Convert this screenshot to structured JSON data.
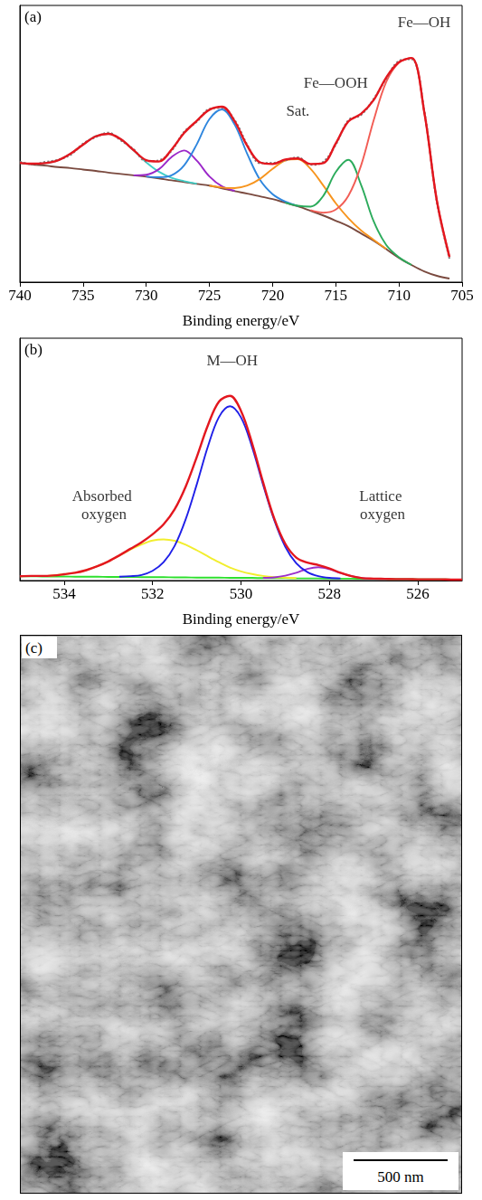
{
  "chart_data": [
    {
      "type": "line",
      "title": "(a)",
      "xlabel": "Binding energy/eV",
      "xlim": [
        740,
        705
      ],
      "xticks": [
        740,
        735,
        730,
        725,
        720,
        715,
        710,
        705
      ],
      "ylim": [
        0,
        100
      ],
      "grid": false,
      "tick_labels": "x",
      "x": [
        740,
        739,
        738,
        737,
        736,
        735,
        734,
        733,
        732,
        731,
        730,
        729,
        728,
        727,
        726,
        725,
        724,
        723,
        722,
        721,
        720,
        719,
        718,
        717,
        716,
        715,
        714,
        713,
        712,
        711,
        710,
        709,
        708,
        707,
        706
      ],
      "series": [
        {
          "color": "#7a4a3f",
          "line_style": "solid",
          "values": [
            43.0,
            42.5,
            42.1,
            41.6,
            41.2,
            40.7,
            40.2,
            39.6,
            39.1,
            38.6,
            38.1,
            37.5,
            36.8,
            36.2,
            35.5,
            34.9,
            33.9,
            32.9,
            32.0,
            31.0,
            30.0,
            28.7,
            27.4,
            25.8,
            24.1,
            22.2,
            20.2,
            17.6,
            15.0,
            11.9,
            8.8,
            6.2,
            3.9,
            2.3,
            1.3
          ]
        },
        {
          "color": "#41cfc8",
          "line_style": "solid",
          "values": [
            43.1,
            42.8,
            43.0,
            44.0,
            46.4,
            49.7,
            52.7,
            53.6,
            51.6,
            47.6,
            43.3,
            39.9,
            37.7,
            36.5,
            35.6,
            null,
            null,
            null,
            null,
            null,
            null,
            null,
            null,
            null,
            null,
            null,
            null,
            null,
            null,
            null,
            null,
            null,
            null,
            null,
            null
          ]
        },
        {
          "color": "#9b27c9",
          "line_style": "solid",
          "values": [
            null,
            null,
            null,
            null,
            null,
            null,
            null,
            null,
            null,
            38.6,
            38.8,
            40.8,
            45.2,
            47.6,
            43.9,
            38.2,
            34.6,
            33.0,
            null,
            null,
            null,
            null,
            null,
            null,
            null,
            null,
            null,
            null,
            null,
            null,
            null,
            null,
            null,
            null,
            null
          ]
        },
        {
          "color": "#2e86de",
          "line_style": "solid",
          "values": [
            null,
            null,
            null,
            null,
            null,
            null,
            null,
            null,
            null,
            null,
            38.2,
            37.9,
            38.6,
            42.2,
            49.8,
            58.9,
            62.4,
            56.9,
            46.3,
            37.0,
            31.8,
            29.1,
            27.5,
            null,
            null,
            null,
            null,
            null,
            null,
            null,
            null,
            null,
            null,
            null,
            null
          ]
        },
        {
          "color": "#f7941d",
          "line_style": "solid",
          "values": [
            null,
            null,
            null,
            null,
            null,
            null,
            null,
            null,
            null,
            null,
            null,
            null,
            null,
            null,
            null,
            34.9,
            34.2,
            34.0,
            34.9,
            37.3,
            40.9,
            43.9,
            44.4,
            41.0,
            35.0,
            28.5,
            23.1,
            18.7,
            15.3,
            12.0,
            null,
            null,
            null,
            null,
            null
          ]
        },
        {
          "color": "#2bab5b",
          "line_style": "solid",
          "values": [
            null,
            null,
            null,
            null,
            null,
            null,
            null,
            null,
            null,
            null,
            null,
            null,
            null,
            null,
            null,
            null,
            null,
            null,
            null,
            null,
            null,
            28.7,
            27.6,
            27.3,
            31.1,
            39.8,
            44.2,
            35.2,
            22.0,
            13.4,
            9.0,
            6.2,
            null,
            null,
            null
          ]
        },
        {
          "color": "#f25c54",
          "line_style": "solid",
          "values": [
            null,
            null,
            null,
            null,
            null,
            null,
            null,
            null,
            null,
            null,
            null,
            null,
            null,
            null,
            null,
            null,
            null,
            null,
            null,
            null,
            null,
            null,
            null,
            26.0,
            25.1,
            26.2,
            31.2,
            42.1,
            58.5,
            72.4,
            79.3,
            81.0,
            61.6,
            29.5,
            9.1
          ]
        },
        {
          "color": "#7f7f7f",
          "line_style": "dotted",
          "values": [
            43.5,
            42.6,
            43.4,
            44.2,
            46.0,
            50.0,
            52.4,
            54.0,
            51.2,
            48.0,
            43.7,
            44.0,
            47.5,
            54.3,
            58.0,
            62.6,
            63.0,
            58.5,
            49.6,
            43.0,
            43.1,
            44.0,
            45.1,
            42.4,
            43.4,
            49.7,
            58.5,
            60.4,
            66.2,
            73.6,
            79.9,
            80.6,
            62.0,
            29.0,
            8.5
          ]
        },
        {
          "color": "#e3171f",
          "line_style": "solid",
          "values": [
            43.1,
            42.8,
            43.0,
            44.0,
            46.4,
            49.7,
            52.7,
            53.6,
            51.6,
            47.7,
            44.1,
            43.6,
            47.9,
            53.9,
            58.3,
            62.3,
            63.4,
            58.1,
            49.2,
            43.3,
            42.7,
            44.3,
            44.7,
            42.7,
            43.0,
            50.1,
            58.1,
            60.8,
            65.8,
            74.0,
            79.5,
            81.0,
            61.6,
            29.5,
            9.1
          ]
        }
      ],
      "annotations": [
        {
          "text": "Fe—OH",
          "x": 708,
          "y": 94
        },
        {
          "text": "Fe—OOH",
          "x": 715,
          "y": 72
        },
        {
          "text": "Sat.",
          "x": 718,
          "y": 62
        }
      ]
    },
    {
      "type": "line",
      "title": "(b)",
      "xlabel": "Binding energy/eV",
      "xlim": [
        535,
        525
      ],
      "xticks": [
        534,
        532,
        530,
        528,
        526
      ],
      "ylim": [
        0,
        100
      ],
      "grid": false,
      "tick_labels": "x",
      "x": [
        535,
        534.75,
        534.5,
        534.25,
        534,
        533.75,
        533.5,
        533.25,
        533,
        532.75,
        532.5,
        532.25,
        532,
        531.75,
        531.5,
        531.25,
        531,
        530.75,
        530.5,
        530.25,
        530,
        529.75,
        529.5,
        529.25,
        529,
        528.75,
        528.5,
        528.25,
        528,
        527.75,
        527.5,
        527.25,
        527,
        526.75,
        526.5,
        526.25,
        526,
        525.75,
        525.5,
        525.25,
        525
      ],
      "series": [
        {
          "color": "#2ee02e",
          "line_style": "solid",
          "values": [
            1.8,
            1.8,
            1.7,
            1.7,
            1.7,
            1.6,
            1.6,
            1.6,
            1.5,
            1.5,
            1.5,
            1.4,
            1.4,
            1.4,
            1.3,
            1.3,
            1.2,
            1.2,
            1.2,
            1.1,
            1.1,
            1.1,
            1.0,
            1.0,
            1.0,
            0.9,
            0.9,
            0.9,
            0.8,
            0.8,
            0.8,
            0.7,
            0.7,
            0.7,
            0.6,
            0.6,
            0.5,
            0.5,
            0.5,
            0.4,
            0.4
          ]
        },
        {
          "color": "#f2ee2e",
          "line_style": "solid",
          "values": [
            null,
            1.9,
            1.9,
            2.1,
            2.6,
            3.2,
            4.3,
            5.9,
            7.9,
            10.3,
            12.8,
            14.9,
            16.5,
            17.0,
            16.4,
            14.8,
            12.5,
            10.0,
            7.6,
            5.4,
            3.8,
            2.7,
            1.9,
            1.4,
            1.2,
            1.0,
            null,
            null,
            null,
            null,
            null,
            null,
            null,
            null,
            null,
            null,
            null,
            null,
            null,
            null,
            null
          ]
        },
        {
          "color": "#9b2fcc",
          "line_style": "solid",
          "values": [
            null,
            null,
            null,
            null,
            null,
            null,
            null,
            null,
            null,
            null,
            null,
            null,
            null,
            null,
            null,
            null,
            null,
            null,
            null,
            null,
            null,
            null,
            1.1,
            1.3,
            2.0,
            3.2,
            4.8,
            5.5,
            4.7,
            3.1,
            1.8,
            1.0,
            0.8,
            null,
            null,
            null,
            null,
            null,
            null,
            null,
            null
          ]
        },
        {
          "color": "#1f1fe8",
          "line_style": "solid",
          "values": [
            null,
            null,
            null,
            null,
            null,
            null,
            null,
            null,
            null,
            1.6,
            1.8,
            2.3,
            4.0,
            7.6,
            14.3,
            25.3,
            39.7,
            55.2,
            67.4,
            71.9,
            67.3,
            55.1,
            39.5,
            25.0,
            14.0,
            7.1,
            3.5,
            1.8,
            1.1,
            0.9,
            null,
            null,
            null,
            null,
            null,
            null,
            null,
            null,
            null,
            null,
            null
          ]
        },
        {
          "color": "#e3171f",
          "line_style": "solid",
          "values": [
            1.8,
            1.9,
            1.9,
            2.1,
            2.6,
            3.2,
            4.3,
            5.9,
            7.9,
            10.4,
            13.1,
            15.8,
            19.1,
            23.2,
            29.4,
            38.8,
            51.0,
            64.0,
            73.8,
            76.2,
            70.0,
            56.7,
            40.5,
            25.7,
            15.2,
            9.5,
            7.4,
            6.4,
            5.0,
            3.2,
            1.8,
            1.0,
            0.8,
            0.7,
            0.6,
            0.6,
            0.5,
            0.5,
            0.5,
            0.4,
            0.4
          ]
        }
      ],
      "annotations": [
        {
          "text": "M—OH",
          "x": 530.2,
          "y": 91
        },
        {
          "text": "Absorbed oxygen",
          "x": 533.1,
          "y": 31
        },
        {
          "text": "Lattice oxygen",
          "x": 526.8,
          "y": 31
        }
      ]
    }
  ],
  "figure_panel": {
    "label": "(c)",
    "scale_bar": "500 nm"
  }
}
